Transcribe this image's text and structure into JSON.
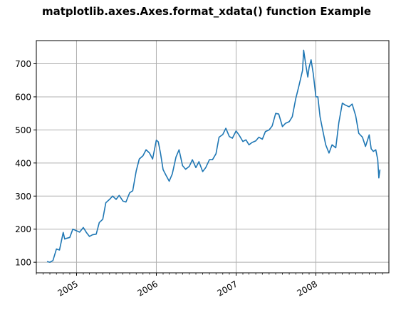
{
  "chart_data": {
    "type": "line",
    "title": "matplotlib.axes.Axes.format_xdata() function Example",
    "xlabel": "",
    "ylabel": "",
    "x_type": "date",
    "xlim": [
      "2004-07-01",
      "2008-11-30"
    ],
    "ylim": [
      68,
      770
    ],
    "x_major_ticks": [
      "2005-01-01",
      "2006-01-01",
      "2007-01-01",
      "2008-01-01"
    ],
    "x_major_tick_labels": [
      "2005",
      "2006",
      "2007",
      "2008"
    ],
    "x_minor_ticks": "monthly",
    "x_tick_rotation": 30,
    "y_ticks": [
      100,
      200,
      300,
      400,
      500,
      600,
      700
    ],
    "y_tick_labels": [
      "100",
      "200",
      "300",
      "400",
      "500",
      "600",
      "700"
    ],
    "grid": true,
    "line_color": "#1f77b4",
    "series": [
      {
        "x": [
          "2004-08-19",
          "2004-09-01",
          "2004-09-15",
          "2004-10-01",
          "2004-10-15",
          "2004-11-01",
          "2004-11-08",
          "2004-11-15",
          "2004-12-01",
          "2004-12-15",
          "2005-01-01",
          "2005-01-15",
          "2005-02-01",
          "2005-02-15",
          "2005-03-01",
          "2005-03-15",
          "2005-04-01",
          "2005-04-15",
          "2005-05-01",
          "2005-05-15",
          "2005-06-01",
          "2005-06-15",
          "2005-07-01",
          "2005-07-15",
          "2005-08-01",
          "2005-08-15",
          "2005-09-01",
          "2005-09-15",
          "2005-10-01",
          "2005-10-15",
          "2005-11-01",
          "2005-11-15",
          "2005-12-01",
          "2005-12-15",
          "2006-01-01",
          "2006-01-10",
          "2006-01-20",
          "2006-02-01",
          "2006-02-15",
          "2006-03-01",
          "2006-03-15",
          "2006-04-01",
          "2006-04-15",
          "2006-05-01",
          "2006-05-15",
          "2006-06-01",
          "2006-06-15",
          "2006-07-01",
          "2006-07-15",
          "2006-08-01",
          "2006-08-15",
          "2006-09-01",
          "2006-09-15",
          "2006-10-01",
          "2006-10-15",
          "2006-11-01",
          "2006-11-15",
          "2006-12-01",
          "2006-12-15",
          "2007-01-01",
          "2007-01-15",
          "2007-02-01",
          "2007-02-15",
          "2007-03-01",
          "2007-03-15",
          "2007-04-01",
          "2007-04-15",
          "2007-05-01",
          "2007-05-15",
          "2007-06-01",
          "2007-06-15",
          "2007-07-01",
          "2007-07-15",
          "2007-08-01",
          "2007-08-15",
          "2007-09-01",
          "2007-09-15",
          "2007-10-01",
          "2007-10-15",
          "2007-11-01",
          "2007-11-06",
          "2007-11-15",
          "2007-11-25",
          "2007-12-01",
          "2007-12-10",
          "2007-12-20",
          "2008-01-01",
          "2008-01-10",
          "2008-01-20",
          "2008-02-01",
          "2008-02-15",
          "2008-03-01",
          "2008-03-15",
          "2008-04-01",
          "2008-04-15",
          "2008-05-01",
          "2008-05-15",
          "2008-06-01",
          "2008-06-15",
          "2008-07-01",
          "2008-07-15",
          "2008-08-01",
          "2008-08-15",
          "2008-09-01",
          "2008-09-10",
          "2008-09-20",
          "2008-10-01",
          "2008-10-10",
          "2008-10-15",
          "2008-10-20"
        ],
        "y": [
          102,
          100,
          105,
          140,
          137,
          190,
          170,
          172,
          175,
          200,
          195,
          191,
          205,
          190,
          178,
          183,
          185,
          220,
          230,
          280,
          290,
          300,
          290,
          302,
          285,
          282,
          310,
          316,
          376,
          412,
          422,
          440,
          430,
          412,
          469,
          464,
          430,
          380,
          362,
          345,
          367,
          418,
          440,
          392,
          381,
          390,
          410,
          386,
          404,
          374,
          386,
          410,
          410,
          428,
          478,
          486,
          505,
          480,
          475,
          497,
          484,
          465,
          470,
          455,
          462,
          467,
          478,
          472,
          495,
          500,
          512,
          550,
          548,
          510,
          520,
          525,
          540,
          595,
          632,
          680,
          741,
          700,
          660,
          689,
          712,
          670,
          600,
          600,
          540,
          500,
          455,
          430,
          455,
          446,
          522,
          581,
          575,
          570,
          578,
          543,
          490,
          478,
          450,
          485,
          443,
          435,
          440,
          410,
          355,
          380
        ]
      }
    ]
  }
}
